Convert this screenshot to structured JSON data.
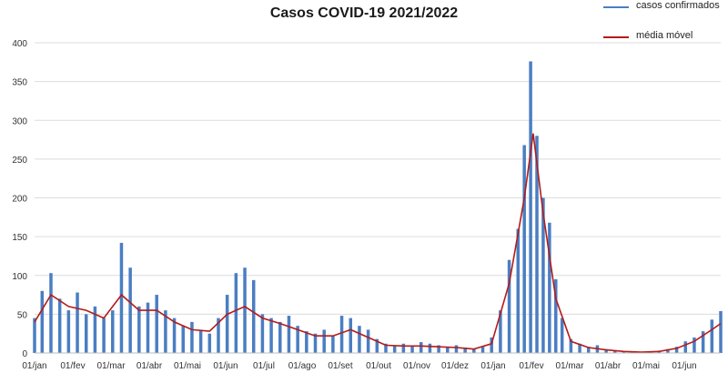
{
  "chart_data": {
    "type": "bar+line",
    "title": "Casos COVID-19  2021/2022",
    "xlabel": "",
    "ylabel": "",
    "ylim": [
      0,
      400
    ],
    "yticks": [
      0,
      50,
      100,
      150,
      200,
      250,
      300,
      350,
      400
    ],
    "xticks": [
      "01/jan",
      "01/fev",
      "01/mar",
      "01/abr",
      "01/mai",
      "01/jun",
      "01/jul",
      "01/ago",
      "01/set",
      "01/out",
      "01/nov",
      "01/dez",
      "01/jan",
      "01/fev",
      "01/mar",
      "01/abr",
      "01/mai",
      "01/jun"
    ],
    "grid": true,
    "legend_position": "top-right",
    "x_start": "2021-01-01",
    "x_end": "2022-06-30",
    "series": [
      {
        "name": "casos confirmados",
        "kind": "bar",
        "color": "#4a7ec2",
        "values": [
          {
            "date": "2021-01-01",
            "value": 45
          },
          {
            "date": "2021-01-07",
            "value": 80
          },
          {
            "date": "2021-01-14",
            "value": 103
          },
          {
            "date": "2021-01-21",
            "value": 70
          },
          {
            "date": "2021-01-28",
            "value": 55
          },
          {
            "date": "2021-02-04",
            "value": 78
          },
          {
            "date": "2021-02-11",
            "value": 50
          },
          {
            "date": "2021-02-18",
            "value": 60
          },
          {
            "date": "2021-02-25",
            "value": 45
          },
          {
            "date": "2021-03-04",
            "value": 55
          },
          {
            "date": "2021-03-11",
            "value": 142
          },
          {
            "date": "2021-03-18",
            "value": 110
          },
          {
            "date": "2021-03-25",
            "value": 60
          },
          {
            "date": "2021-04-01",
            "value": 65
          },
          {
            "date": "2021-04-08",
            "value": 75
          },
          {
            "date": "2021-04-15",
            "value": 55
          },
          {
            "date": "2021-04-22",
            "value": 45
          },
          {
            "date": "2021-04-29",
            "value": 35
          },
          {
            "date": "2021-05-06",
            "value": 40
          },
          {
            "date": "2021-05-13",
            "value": 30
          },
          {
            "date": "2021-05-20",
            "value": 25
          },
          {
            "date": "2021-05-27",
            "value": 45
          },
          {
            "date": "2021-06-03",
            "value": 75
          },
          {
            "date": "2021-06-10",
            "value": 103
          },
          {
            "date": "2021-06-17",
            "value": 110
          },
          {
            "date": "2021-06-24",
            "value": 94
          },
          {
            "date": "2021-07-01",
            "value": 50
          },
          {
            "date": "2021-07-08",
            "value": 45
          },
          {
            "date": "2021-07-15",
            "value": 40
          },
          {
            "date": "2021-07-22",
            "value": 48
          },
          {
            "date": "2021-07-29",
            "value": 35
          },
          {
            "date": "2021-08-05",
            "value": 28
          },
          {
            "date": "2021-08-12",
            "value": 25
          },
          {
            "date": "2021-08-19",
            "value": 30
          },
          {
            "date": "2021-08-26",
            "value": 22
          },
          {
            "date": "2021-09-02",
            "value": 48
          },
          {
            "date": "2021-09-09",
            "value": 45
          },
          {
            "date": "2021-09-16",
            "value": 35
          },
          {
            "date": "2021-09-23",
            "value": 30
          },
          {
            "date": "2021-09-30",
            "value": 18
          },
          {
            "date": "2021-10-07",
            "value": 12
          },
          {
            "date": "2021-10-14",
            "value": 10
          },
          {
            "date": "2021-10-21",
            "value": 12
          },
          {
            "date": "2021-10-28",
            "value": 9
          },
          {
            "date": "2021-11-04",
            "value": 14
          },
          {
            "date": "2021-11-11",
            "value": 12
          },
          {
            "date": "2021-11-18",
            "value": 10
          },
          {
            "date": "2021-11-25",
            "value": 8
          },
          {
            "date": "2021-12-02",
            "value": 10
          },
          {
            "date": "2021-12-09",
            "value": 7
          },
          {
            "date": "2021-12-16",
            "value": 5
          },
          {
            "date": "2021-12-23",
            "value": 8
          },
          {
            "date": "2021-12-30",
            "value": 20
          },
          {
            "date": "2022-01-06",
            "value": 55
          },
          {
            "date": "2022-01-13",
            "value": 120
          },
          {
            "date": "2022-01-20",
            "value": 160
          },
          {
            "date": "2022-01-25",
            "value": 268
          },
          {
            "date": "2022-01-30",
            "value": 376
          },
          {
            "date": "2022-02-04",
            "value": 280
          },
          {
            "date": "2022-02-09",
            "value": 200
          },
          {
            "date": "2022-02-14",
            "value": 168
          },
          {
            "date": "2022-02-19",
            "value": 95
          },
          {
            "date": "2022-02-24",
            "value": 45
          },
          {
            "date": "2022-03-03",
            "value": 18
          },
          {
            "date": "2022-03-10",
            "value": 12
          },
          {
            "date": "2022-03-17",
            "value": 8
          },
          {
            "date": "2022-03-24",
            "value": 10
          },
          {
            "date": "2022-03-31",
            "value": 5
          },
          {
            "date": "2022-04-07",
            "value": 3
          },
          {
            "date": "2022-04-14",
            "value": 2
          },
          {
            "date": "2022-04-21",
            "value": 2
          },
          {
            "date": "2022-04-28",
            "value": 1
          },
          {
            "date": "2022-05-05",
            "value": 2
          },
          {
            "date": "2022-05-12",
            "value": 3
          },
          {
            "date": "2022-05-19",
            "value": 5
          },
          {
            "date": "2022-05-26",
            "value": 8
          },
          {
            "date": "2022-06-02",
            "value": 15
          },
          {
            "date": "2022-06-09",
            "value": 20
          },
          {
            "date": "2022-06-16",
            "value": 28
          },
          {
            "date": "2022-06-23",
            "value": 43
          },
          {
            "date": "2022-06-30",
            "value": 54
          }
        ]
      },
      {
        "name": "média móvel",
        "kind": "line",
        "color": "#b31b1b",
        "values": [
          {
            "date": "2021-01-01",
            "value": 40
          },
          {
            "date": "2021-01-14",
            "value": 75
          },
          {
            "date": "2021-01-28",
            "value": 60
          },
          {
            "date": "2021-02-11",
            "value": 55
          },
          {
            "date": "2021-02-25",
            "value": 45
          },
          {
            "date": "2021-03-11",
            "value": 75
          },
          {
            "date": "2021-03-25",
            "value": 55
          },
          {
            "date": "2021-04-08",
            "value": 55
          },
          {
            "date": "2021-04-22",
            "value": 40
          },
          {
            "date": "2021-05-06",
            "value": 30
          },
          {
            "date": "2021-05-20",
            "value": 28
          },
          {
            "date": "2021-06-03",
            "value": 50
          },
          {
            "date": "2021-06-17",
            "value": 60
          },
          {
            "date": "2021-07-01",
            "value": 45
          },
          {
            "date": "2021-07-15",
            "value": 38
          },
          {
            "date": "2021-07-29",
            "value": 30
          },
          {
            "date": "2021-08-12",
            "value": 22
          },
          {
            "date": "2021-08-26",
            "value": 22
          },
          {
            "date": "2021-09-09",
            "value": 30
          },
          {
            "date": "2021-09-23",
            "value": 20
          },
          {
            "date": "2021-10-07",
            "value": 10
          },
          {
            "date": "2021-10-21",
            "value": 9
          },
          {
            "date": "2021-11-04",
            "value": 9
          },
          {
            "date": "2021-11-18",
            "value": 8
          },
          {
            "date": "2021-12-02",
            "value": 7
          },
          {
            "date": "2021-12-16",
            "value": 5
          },
          {
            "date": "2021-12-30",
            "value": 12
          },
          {
            "date": "2022-01-13",
            "value": 90
          },
          {
            "date": "2022-01-25",
            "value": 200
          },
          {
            "date": "2022-02-01",
            "value": 283
          },
          {
            "date": "2022-02-09",
            "value": 180
          },
          {
            "date": "2022-02-19",
            "value": 70
          },
          {
            "date": "2022-03-03",
            "value": 15
          },
          {
            "date": "2022-03-17",
            "value": 7
          },
          {
            "date": "2022-03-31",
            "value": 4
          },
          {
            "date": "2022-04-14",
            "value": 2
          },
          {
            "date": "2022-04-28",
            "value": 1
          },
          {
            "date": "2022-05-12",
            "value": 2
          },
          {
            "date": "2022-05-26",
            "value": 6
          },
          {
            "date": "2022-06-09",
            "value": 15
          },
          {
            "date": "2022-06-23",
            "value": 30
          },
          {
            "date": "2022-06-30",
            "value": 38
          }
        ]
      }
    ]
  }
}
